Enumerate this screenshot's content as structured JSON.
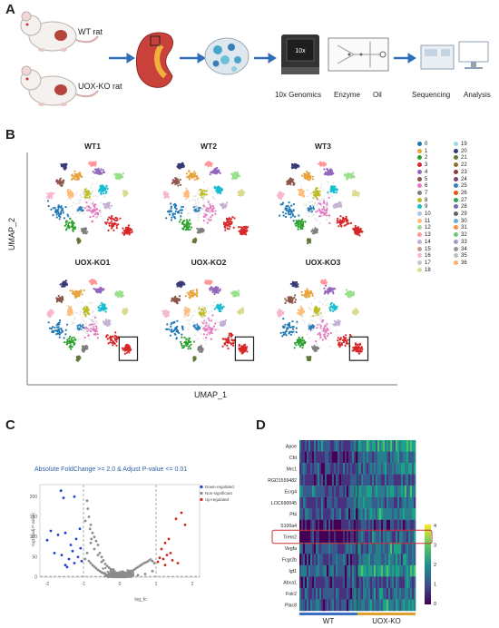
{
  "panels": {
    "a": {
      "letter": "A",
      "wt_label": "WT rat",
      "ko_label": "UOX-KO rat",
      "steps": [
        "10x Genomics",
        "Enzyme",
        "Oil",
        "Sequencing",
        "Analysis"
      ],
      "device_display": "10x"
    },
    "b": {
      "letter": "B",
      "samples": [
        "WT1",
        "WT2",
        "WT3",
        "UOX-KO1",
        "UOX-KO2",
        "UOX-KO3"
      ],
      "x_axis": "UMAP_1",
      "y_axis": "UMAP_2",
      "clusters_left": [
        "0",
        "1",
        "2",
        "3",
        "4",
        "5",
        "6",
        "7",
        "8",
        "9",
        "10",
        "11",
        "12",
        "13",
        "14",
        "15",
        "16",
        "17",
        "18"
      ],
      "clusters_right": [
        "19",
        "20",
        "21",
        "22",
        "23",
        "24",
        "25",
        "26",
        "27",
        "28",
        "29",
        "30",
        "31",
        "32",
        "33",
        "34",
        "35",
        "36"
      ],
      "cluster_colors": [
        "#1f77b4",
        "#e8a33d",
        "#2ca02c",
        "#d62728",
        "#9467bd",
        "#8c564b",
        "#e377c2",
        "#7f7f7f",
        "#bcbd22",
        "#17becf",
        "#aec7e8",
        "#ffbb78",
        "#98df8a",
        "#ff9896",
        "#c5b0d5",
        "#c49c94",
        "#f7b6d2",
        "#c7c7c7",
        "#dbdb8d",
        "#9edae5",
        "#393b79",
        "#637939",
        "#8c6d31",
        "#843c39",
        "#7b4173",
        "#3182bd",
        "#e6550d",
        "#31a354",
        "#756bb1",
        "#636363",
        "#6baed6",
        "#fd8d3c",
        "#74c476",
        "#9e9ac8",
        "#969696",
        "#bdbdbd",
        "#fdae6b"
      ]
    },
    "c": {
      "letter": "C",
      "title": "Absolute FoldChange >= 2.0 &  Adjust P-value <= 0.01",
      "legend": [
        "Down-regulated",
        "Non-significant",
        "Up-regulated"
      ],
      "legend_colors": [
        "#1f3fd1",
        "#8c8c8c",
        "#cc2a1f"
      ],
      "xlabel": "log_fc",
      "ylabel": "-log10(adj P-value)",
      "xticks": [
        "-2",
        "-1",
        "0",
        "1",
        "2"
      ],
      "yticks": [
        "0",
        "50",
        "100",
        "150",
        "200"
      ]
    },
    "d": {
      "letter": "D",
      "genes": [
        "Apoe",
        "Cfd",
        "Mrc1",
        "RGD1559482",
        "Ecrg4",
        "LOC690045",
        "Pf4",
        "S100a4",
        "Trem2",
        "Vegfa",
        "Fcgr2b",
        "Igf1",
        "Abca1",
        "Folr2",
        "Plac8"
      ],
      "highlighted_gene": "Trem2",
      "groups": [
        "WT",
        "UOX-KO"
      ],
      "group_colors": [
        "#3a6fc4",
        "#e0a030"
      ],
      "colorbar_ticks": [
        "4",
        "3",
        "2",
        "1",
        "0"
      ]
    }
  },
  "chart_data": [
    {
      "type": "scatter",
      "title": "Absolute FoldChange >= 2.0 &  Adjust P-value <= 0.01",
      "xlabel": "log_fc",
      "ylabel": "-log10(adj P-value)",
      "xlim": [
        -2.2,
        2.2
      ],
      "ylim": [
        0,
        230
      ],
      "thresholds": {
        "x": [
          -1,
          1
        ],
        "y": 2
      },
      "series": [
        {
          "name": "Down-regulated",
          "color": "#1f3fd1",
          "points": [
            [
              -1.62,
              215
            ],
            [
              -1.55,
              197
            ],
            [
              -1.25,
              200
            ],
            [
              -1.9,
              115
            ],
            [
              -1.5,
              110
            ],
            [
              -1.7,
              105
            ],
            [
              -1.2,
              95
            ],
            [
              -1.1,
              120
            ],
            [
              -1.35,
              80
            ],
            [
              -1.8,
              60
            ],
            [
              -1.6,
              55
            ],
            [
              -1.4,
              45
            ],
            [
              -1.15,
              50
            ],
            [
              -1.25,
              35
            ],
            [
              -1.5,
              30
            ],
            [
              -1.45,
              25
            ],
            [
              -1.05,
              40
            ],
            [
              -2.0,
              92
            ],
            [
              -1.3,
              65
            ],
            [
              -1.08,
              72
            ]
          ]
        },
        {
          "name": "Non-significant",
          "color": "#8c8c8c",
          "points": [
            [
              -0.9,
              190
            ],
            [
              -0.85,
              150
            ],
            [
              -0.8,
              130
            ],
            [
              -0.75,
              110
            ],
            [
              -0.7,
              100
            ],
            [
              -0.65,
              90
            ],
            [
              -0.8,
              85
            ],
            [
              -0.6,
              80
            ],
            [
              -0.7,
              70
            ],
            [
              -0.55,
              60
            ],
            [
              -0.6,
              55
            ],
            [
              -0.5,
              50
            ],
            [
              -0.45,
              42
            ],
            [
              -0.5,
              38
            ],
            [
              -0.4,
              33
            ],
            [
              -0.35,
              28
            ],
            [
              -0.3,
              24
            ],
            [
              -0.25,
              20
            ],
            [
              -0.2,
              16
            ],
            [
              -0.15,
              13
            ],
            [
              -0.1,
              10
            ],
            [
              -0.05,
              7
            ],
            [
              0.0,
              5
            ],
            [
              0.05,
              4
            ],
            [
              0.1,
              6
            ],
            [
              0.15,
              8
            ],
            [
              0.2,
              10
            ],
            [
              0.25,
              12
            ],
            [
              0.3,
              14
            ],
            [
              0.35,
              16
            ],
            [
              0.4,
              19
            ],
            [
              0.45,
              22
            ],
            [
              0.5,
              25
            ],
            [
              0.55,
              28
            ],
            [
              0.6,
              31
            ],
            [
              0.65,
              34
            ],
            [
              0.7,
              36
            ],
            [
              0.75,
              38
            ],
            [
              0.8,
              41
            ],
            [
              0.85,
              44
            ],
            [
              0.9,
              40
            ],
            [
              0.95,
              35
            ],
            [
              -0.9,
              60
            ],
            [
              -0.95,
              45
            ],
            [
              -0.85,
              40
            ],
            [
              -0.8,
              35
            ],
            [
              -0.75,
              30
            ],
            [
              -0.7,
              26
            ],
            [
              -0.65,
              22
            ],
            [
              -0.6,
              18
            ],
            [
              -0.55,
              15
            ],
            [
              -0.5,
              12
            ],
            [
              -0.45,
              10
            ],
            [
              -0.4,
              8
            ],
            [
              -0.35,
              6
            ],
            [
              -0.3,
              5
            ],
            [
              -0.25,
              4
            ],
            [
              -0.2,
              3
            ],
            [
              0.3,
              3
            ],
            [
              0.5,
              5
            ],
            [
              0.7,
              8
            ],
            [
              0.9,
              15
            ],
            [
              -0.95,
              140
            ],
            [
              -0.88,
              170
            ],
            [
              -0.82,
              120
            ],
            [
              -0.78,
              95
            ]
          ]
        },
        {
          "name": "Up-regulated",
          "color": "#cc2a1f",
          "points": [
            [
              1.7,
              160
            ],
            [
              1.55,
              145
            ],
            [
              1.8,
              130
            ],
            [
              1.35,
              95
            ],
            [
              1.25,
              85
            ],
            [
              1.15,
              70
            ],
            [
              1.4,
              60
            ],
            [
              1.3,
              55
            ],
            [
              1.1,
              48
            ],
            [
              1.2,
              45
            ],
            [
              1.45,
              42
            ],
            [
              1.05,
              38
            ],
            [
              1.6,
              35
            ],
            [
              1.25,
              30
            ]
          ]
        }
      ]
    },
    {
      "type": "heatmap",
      "rows": [
        "Apoe",
        "Cfd",
        "Mrc1",
        "RGD1559482",
        "Ecrg4",
        "LOC690045",
        "Pf4",
        "S100a4",
        "Trem2",
        "Vegfa",
        "Fcgr2b",
        "Igf1",
        "Abca1",
        "Folr2",
        "Plac8"
      ],
      "columns": [
        "WT",
        "UOX-KO"
      ],
      "mean_expression": [
        [
          1.2,
          2.1
        ],
        [
          0.8,
          1.5
        ],
        [
          1.0,
          1.6
        ],
        [
          0.9,
          1.3
        ],
        [
          1.4,
          1.9
        ],
        [
          0.9,
          1.4
        ],
        [
          1.1,
          1.8
        ],
        [
          0.6,
          0.9
        ],
        [
          0.5,
          1.4
        ],
        [
          1.2,
          1.6
        ],
        [
          1.0,
          1.7
        ],
        [
          1.3,
          2.0
        ],
        [
          0.9,
          1.3
        ],
        [
          1.0,
          1.5
        ],
        [
          1.2,
          1.7
        ]
      ],
      "colorbar_range": [
        0,
        4
      ]
    }
  ]
}
